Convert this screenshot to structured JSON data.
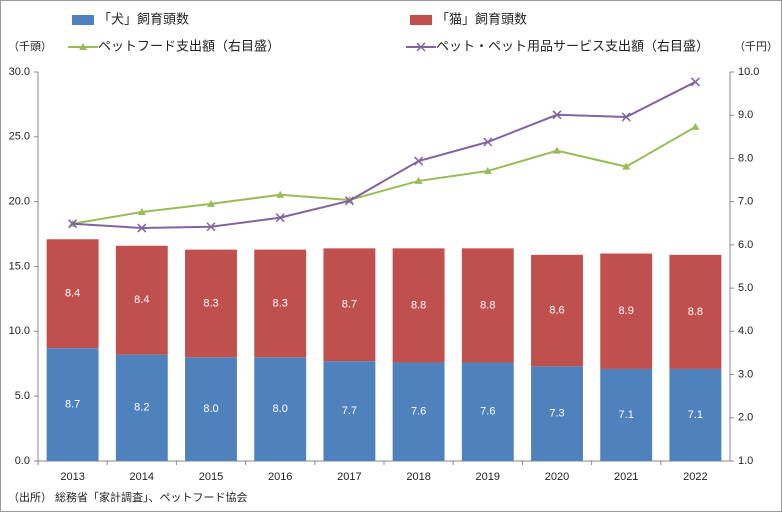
{
  "chart_data": {
    "type": "bar",
    "categories": [
      "2013",
      "2014",
      "2015",
      "2016",
      "2017",
      "2018",
      "2019",
      "2020",
      "2021",
      "2022"
    ],
    "y_unit_label": "（千頭）",
    "y2_unit_label": "（千円）",
    "source": "（出所） 総務省「家計調査」、ペットフード協会",
    "ylim": [
      0,
      30
    ],
    "yticks": [
      {
        "value": 0,
        "label": "0.0"
      },
      {
        "value": 5,
        "label": "5.0"
      },
      {
        "value": 10,
        "label": "10.0"
      },
      {
        "value": 15,
        "label": "15.0"
      },
      {
        "value": 20,
        "label": "20.0"
      },
      {
        "value": 25,
        "label": "25.0"
      },
      {
        "value": 30,
        "label": "30.0"
      }
    ],
    "y2lim": [
      1,
      10
    ],
    "y2ticks": [
      {
        "value": 1,
        "label": "1.0"
      },
      {
        "value": 2,
        "label": "2.0"
      },
      {
        "value": 3,
        "label": "3.0"
      },
      {
        "value": 4,
        "label": "4.0"
      },
      {
        "value": 5,
        "label": "5.0"
      },
      {
        "value": 6,
        "label": "6.0"
      },
      {
        "value": 7,
        "label": "7.0"
      },
      {
        "value": 8,
        "label": "8.0"
      },
      {
        "value": 9,
        "label": "9.0"
      },
      {
        "value": 10,
        "label": "10.0"
      }
    ],
    "series": [
      {
        "name": "「犬」飼育頭数",
        "type": "bar",
        "color": "#4f81bd",
        "values": [
          8.7,
          8.2,
          8.0,
          8.0,
          7.7,
          7.6,
          7.6,
          7.3,
          7.1,
          7.1
        ],
        "value_labels": [
          "8.7",
          "8.2",
          "8.0",
          "8.0",
          "7.7",
          "7.6",
          "7.6",
          "7.3",
          "7.1",
          "7.1"
        ]
      },
      {
        "name": "「猫」飼育頭数",
        "type": "bar",
        "color": "#c0504d",
        "values": [
          8.4,
          8.4,
          8.3,
          8.3,
          8.7,
          8.8,
          8.8,
          8.6,
          8.9,
          8.8
        ],
        "value_labels": [
          "8.4",
          "8.4",
          "8.3",
          "8.3",
          "8.7",
          "8.8",
          "8.8",
          "8.6",
          "8.9",
          "8.8"
        ]
      },
      {
        "name": "ペットフード支出額（右目盛）",
        "type": "line",
        "axis": "y2",
        "color": "#9bbb59",
        "marker": "triangle",
        "values": [
          6.49,
          6.76,
          6.95,
          7.16,
          7.04,
          7.48,
          7.71,
          8.18,
          7.81,
          8.73
        ]
      },
      {
        "name": "ペット・ペット用品サービス支出額（右目盛）",
        "type": "line",
        "axis": "y2",
        "color": "#8064a2",
        "marker": "x",
        "values": [
          6.49,
          6.39,
          6.42,
          6.63,
          7.02,
          7.94,
          8.38,
          9.01,
          8.96,
          9.77
        ]
      }
    ]
  }
}
